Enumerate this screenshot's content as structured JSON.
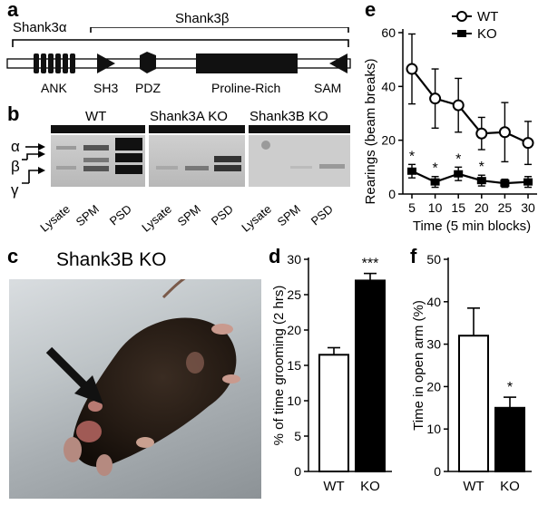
{
  "panel_a": {
    "letter": "a",
    "label_alpha": "Shank3α",
    "label_beta": "Shank3β",
    "domains": [
      "ANK",
      "SH3",
      "PDZ",
      "Proline-Rich",
      "SAM"
    ]
  },
  "panel_b": {
    "letter": "b",
    "groups": [
      "WT",
      "Shank3A KO",
      "Shank3B KO"
    ],
    "lanes": [
      "Lysate",
      "SPM",
      "PSD",
      "Lysate",
      "SPM",
      "PSD",
      "Lysate",
      "SPM",
      "PSD"
    ],
    "isoforms": [
      "α",
      "β",
      "γ"
    ]
  },
  "panel_c": {
    "letter": "c",
    "title": "Shank3B KO"
  },
  "panel_d": {
    "letter": "d"
  },
  "panel_e": {
    "letter": "e"
  },
  "panel_f": {
    "letter": "f"
  },
  "chart_data": [
    {
      "id": "e",
      "type": "line",
      "xlabel": "Time (5 min blocks)",
      "ylabel": "Rearings (beam breaks)",
      "x": [
        5,
        10,
        15,
        20,
        25,
        30
      ],
      "xlim": [
        5,
        30
      ],
      "ylim": [
        0,
        60
      ],
      "yticks": [
        0,
        20,
        40,
        60
      ],
      "series": [
        {
          "name": "WT",
          "values": [
            46.5,
            35.5,
            33,
            22.5,
            23,
            19
          ],
          "errors": [
            13,
            11,
            10,
            6,
            11,
            8
          ],
          "marker": "open-circle"
        },
        {
          "name": "KO",
          "values": [
            8.5,
            4.5,
            7.5,
            5,
            4,
            4.5
          ],
          "errors": [
            2.5,
            2,
            2.5,
            2,
            1.5,
            2
          ],
          "marker": "filled-square"
        }
      ],
      "annotations": [
        {
          "x": 5,
          "text": "*"
        },
        {
          "x": 10,
          "text": "*"
        },
        {
          "x": 15,
          "text": "*"
        },
        {
          "x": 20,
          "text": "*"
        }
      ]
    },
    {
      "id": "d",
      "type": "bar",
      "categories": [
        "WT",
        "KO"
      ],
      "values": [
        16.5,
        27
      ],
      "errors": [
        1,
        1
      ],
      "ylabel": "% of time grooming (2 hrs)",
      "ylim": [
        0,
        30
      ],
      "yticks": [
        0,
        5,
        10,
        15,
        20,
        25,
        30
      ],
      "significance": "***"
    },
    {
      "id": "f",
      "type": "bar",
      "categories": [
        "WT",
        "KO"
      ],
      "values": [
        32,
        15
      ],
      "errors": [
        6.5,
        2.5
      ],
      "ylabel": "Time in open arm (%)",
      "ylim": [
        0,
        50
      ],
      "yticks": [
        0,
        10,
        20,
        30,
        40,
        50
      ],
      "significance": "*"
    }
  ]
}
